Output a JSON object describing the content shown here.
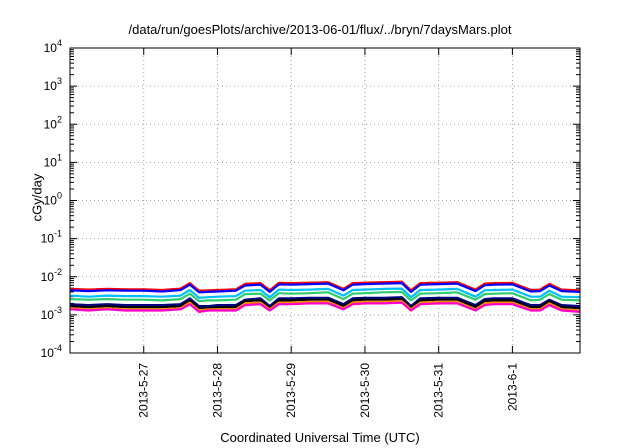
{
  "chart_data": {
    "type": "line",
    "title": "/data/run/goesPlots/archive/2013-06-01/flux/../bryn/7daysMars.plot",
    "xlabel": "Coordinated Universal Time (UTC)",
    "ylabel": "cGy/day",
    "yscale": "log",
    "ylim": [
      0.0001,
      10000
    ],
    "xlim": [
      "2013-05-26 00:00",
      "2013-06-01 22:00"
    ],
    "grid": true,
    "xticks": [
      "2013-5-27",
      "2013-5-28",
      "2013-5-29",
      "2013-5-30",
      "2013-5-31",
      "2013-6-1"
    ],
    "yticks": [
      {
        "base": "10",
        "exp": "4",
        "value": 10000
      },
      {
        "base": "10",
        "exp": "3",
        "value": 1000
      },
      {
        "base": "10",
        "exp": "2",
        "value": 100
      },
      {
        "base": "10",
        "exp": "1",
        "value": 10
      },
      {
        "base": "10",
        "exp": "0",
        "value": 1
      },
      {
        "base": "10",
        "exp": "-1",
        "value": 0.1
      },
      {
        "base": "10",
        "exp": "-2",
        "value": 0.01
      },
      {
        "base": "10",
        "exp": "-3",
        "value": 0.001
      },
      {
        "base": "10",
        "exp": "-4",
        "value": 0.0001
      }
    ],
    "x": [
      "2013-05-26 00:00",
      "2013-05-26 06:00",
      "2013-05-26 12:00",
      "2013-05-26 18:00",
      "2013-05-27 00:00",
      "2013-05-27 06:00",
      "2013-05-27 12:00",
      "2013-05-27 15:00",
      "2013-05-27 18:00",
      "2013-05-27 21:00",
      "2013-05-28 00:00",
      "2013-05-28 06:00",
      "2013-05-28 09:00",
      "2013-05-28 14:00",
      "2013-05-28 17:00",
      "2013-05-28 20:00",
      "2013-05-29 00:00",
      "2013-05-29 06:00",
      "2013-05-29 12:00",
      "2013-05-29 17:00",
      "2013-05-29 20:00",
      "2013-05-30 00:00",
      "2013-05-30 06:00",
      "2013-05-30 12:00",
      "2013-05-30 15:00",
      "2013-05-30 18:00",
      "2013-05-31 00:00",
      "2013-05-31 06:00",
      "2013-05-31 12:00",
      "2013-05-31 15:00",
      "2013-05-31 18:00",
      "2013-06-01 00:00",
      "2013-06-01 06:00",
      "2013-06-01 09:00",
      "2013-06-01 12:00",
      "2013-06-01 16:00",
      "2013-06-01 22:00"
    ],
    "series": [
      {
        "color": "#ff0000",
        "values": [
          0.0048,
          0.0046,
          0.0048,
          0.0047,
          0.0047,
          0.0045,
          0.0049,
          0.0068,
          0.0043,
          0.0044,
          0.0045,
          0.0047,
          0.0065,
          0.0068,
          0.0044,
          0.0069,
          0.0068,
          0.007,
          0.0072,
          0.0048,
          0.0068,
          0.007,
          0.0072,
          0.0074,
          0.0044,
          0.0068,
          0.007,
          0.0072,
          0.0046,
          0.0066,
          0.0068,
          0.0069,
          0.0045,
          0.0046,
          0.0065,
          0.0046,
          0.0044
        ]
      },
      {
        "color": "#0000ff",
        "values": [
          0.0044,
          0.0042,
          0.0044,
          0.0043,
          0.0043,
          0.0041,
          0.0045,
          0.0062,
          0.0039,
          0.004,
          0.0041,
          0.0043,
          0.0059,
          0.0062,
          0.004,
          0.0063,
          0.0062,
          0.0064,
          0.0066,
          0.0044,
          0.0062,
          0.0064,
          0.0066,
          0.0068,
          0.004,
          0.0062,
          0.0064,
          0.0066,
          0.0042,
          0.006,
          0.0062,
          0.0063,
          0.0041,
          0.0042,
          0.0059,
          0.0042,
          0.004
        ]
      },
      {
        "color": "#00bfff",
        "values": [
          0.0032,
          0.003,
          0.0032,
          0.0031,
          0.0031,
          0.003,
          0.0032,
          0.0045,
          0.0028,
          0.0029,
          0.003,
          0.0031,
          0.0043,
          0.0045,
          0.0029,
          0.0046,
          0.0045,
          0.0046,
          0.0048,
          0.0032,
          0.0045,
          0.0046,
          0.0048,
          0.0049,
          0.0029,
          0.0045,
          0.0046,
          0.0048,
          0.003,
          0.0044,
          0.0045,
          0.0046,
          0.003,
          0.003,
          0.0043,
          0.003,
          0.0029
        ]
      },
      {
        "color": "#2ecc71",
        "values": [
          0.0026,
          0.0025,
          0.0026,
          0.0025,
          0.0025,
          0.0024,
          0.0026,
          0.0036,
          0.0023,
          0.0024,
          0.0024,
          0.0025,
          0.0035,
          0.0036,
          0.0024,
          0.0037,
          0.0036,
          0.0037,
          0.0039,
          0.0026,
          0.0036,
          0.0037,
          0.0039,
          0.004,
          0.0024,
          0.0036,
          0.0037,
          0.0039,
          0.0025,
          0.0035,
          0.0036,
          0.0037,
          0.0024,
          0.0025,
          0.0035,
          0.0025,
          0.0024
        ]
      },
      {
        "color": "#000080",
        "values": [
          0.0019,
          0.0018,
          0.0019,
          0.0018,
          0.0018,
          0.0018,
          0.0019,
          0.0027,
          0.0017,
          0.0017,
          0.0018,
          0.0018,
          0.0025,
          0.0027,
          0.0017,
          0.0027,
          0.0027,
          0.0028,
          0.0028,
          0.0019,
          0.0027,
          0.0028,
          0.0028,
          0.0029,
          0.0017,
          0.0027,
          0.0028,
          0.0028,
          0.0018,
          0.0026,
          0.0027,
          0.0027,
          0.0018,
          0.0018,
          0.0025,
          0.0018,
          0.0017
        ]
      },
      {
        "color": "#000000",
        "values": [
          0.0017,
          0.0016,
          0.0017,
          0.0016,
          0.0016,
          0.0016,
          0.0017,
          0.0024,
          0.0015,
          0.0015,
          0.0016,
          0.0016,
          0.0023,
          0.0024,
          0.0015,
          0.0024,
          0.0024,
          0.0025,
          0.0025,
          0.0017,
          0.0024,
          0.0025,
          0.0025,
          0.0026,
          0.0015,
          0.0024,
          0.0025,
          0.0025,
          0.0016,
          0.0023,
          0.0024,
          0.0024,
          0.0016,
          0.0016,
          0.0023,
          0.0016,
          0.0015
        ]
      },
      {
        "color": "#ff8c00",
        "values": [
          0.0015,
          0.0014,
          0.0015,
          0.0014,
          0.0014,
          0.0014,
          0.0015,
          0.0021,
          0.0013,
          0.0014,
          0.0014,
          0.0014,
          0.002,
          0.0021,
          0.0014,
          0.0021,
          0.0021,
          0.0022,
          0.0022,
          0.0015,
          0.0021,
          0.0022,
          0.0022,
          0.0023,
          0.0014,
          0.0021,
          0.0022,
          0.0022,
          0.0014,
          0.002,
          0.0021,
          0.0021,
          0.0014,
          0.0014,
          0.002,
          0.0014,
          0.0013
        ]
      },
      {
        "color": "#ff00cc",
        "values": [
          0.0014,
          0.0013,
          0.0014,
          0.0013,
          0.0013,
          0.0013,
          0.0014,
          0.0019,
          0.0012,
          0.0013,
          0.0013,
          0.0013,
          0.0018,
          0.0019,
          0.0013,
          0.0019,
          0.0019,
          0.002,
          0.002,
          0.0014,
          0.0019,
          0.002,
          0.002,
          0.0021,
          0.0013,
          0.0019,
          0.002,
          0.002,
          0.0013,
          0.0018,
          0.0019,
          0.0019,
          0.0013,
          0.0013,
          0.0018,
          0.0013,
          0.0012
        ]
      }
    ]
  }
}
